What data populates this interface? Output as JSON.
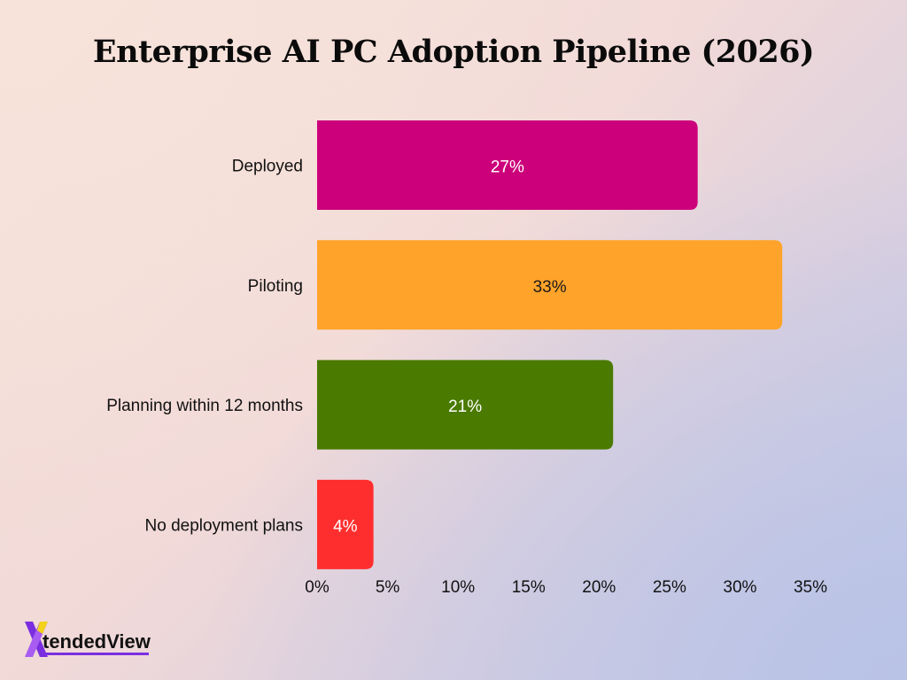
{
  "chart_data": {
    "type": "bar",
    "orientation": "horizontal",
    "title": "Enterprise AI PC Adoption Pipeline (2026)",
    "categories": [
      "Deployed",
      "Piloting",
      "Planning within 12 months",
      "No deployment plans"
    ],
    "values": [
      27,
      33,
      21,
      4
    ],
    "data_labels": [
      "27%",
      "33%",
      "21%",
      "4%"
    ],
    "colors": [
      "#cc007a",
      "#ffa32a",
      "#4a7a00",
      "#ff2e2e"
    ],
    "label_colors": [
      "#ffffff",
      "#1a1a1a",
      "#ffffff",
      "#ffffff"
    ],
    "xlim": [
      0,
      35
    ],
    "x_ticks": [
      0,
      5,
      10,
      15,
      20,
      25,
      30,
      35
    ],
    "x_tick_labels": [
      "0%",
      "5%",
      "10%",
      "15%",
      "20%",
      "25%",
      "30%",
      "35%"
    ],
    "xlabel": "",
    "ylabel": "",
    "grid": false,
    "legend": "none"
  },
  "logo": {
    "text": "tendedView",
    "icon": "x-logo-icon"
  }
}
